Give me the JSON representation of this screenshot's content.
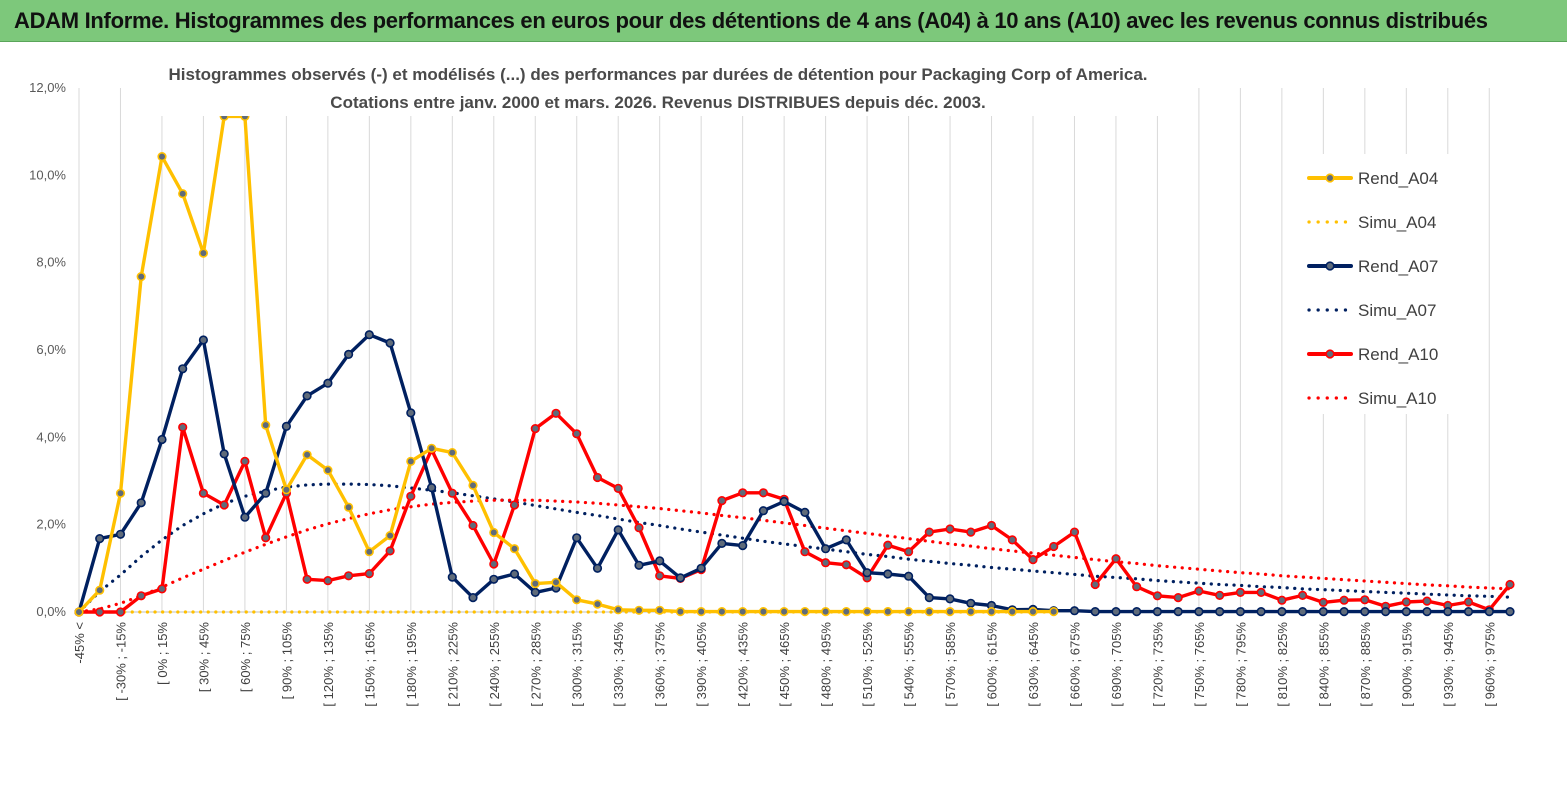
{
  "header": {
    "title": "ADAM Informe. Histogrammes des performances en euros pour des détentions de 4 ans (A04) à 10 ans (A10) avec les revenus connus distribués"
  },
  "chart_data": {
    "type": "line",
    "title": "Histogrammes observés (-)  et modélisés (...) des performances par durées de détention pour Packaging Corp of America.",
    "subtitle": "Cotations entre janv. 2000 et mars. 2026.  Revenus DISTRIBUES depuis déc. 2003.",
    "xlabel": "",
    "ylabel": "",
    "ylim": [
      0,
      0.12
    ],
    "ytick_labels": [
      "0,0%",
      "2,0%",
      "4,0%",
      "6,0%",
      "8,0%",
      "10,0%",
      "12,0%"
    ],
    "grid": "vertical",
    "legend_position": "right",
    "categories": [
      "-45% <",
      "",
      "[ -30% ; -15%",
      "",
      "[ 0% ; 15%",
      "",
      "[ 30% ; 45%",
      "",
      "[ 60% ; 75%",
      "",
      "[ 90% ; 105%",
      "",
      "[ 120% ; 135%",
      "",
      "[ 150% ; 165%",
      "",
      "[ 180% ; 195%",
      "",
      "[ 210% ; 225%",
      "",
      "[ 240% ; 255%",
      "",
      "[ 270% ; 285%",
      "",
      "[ 300% ; 315%",
      "",
      "[ 330% ; 345%",
      "",
      "[ 360% ; 375%",
      "",
      "[ 390% ; 405%",
      "",
      "[ 420% ; 435%",
      "",
      "[ 450% ; 465%",
      "",
      "[ 480% ; 495%",
      "",
      "[ 510% ; 525%",
      "",
      "[ 540% ; 555%",
      "",
      "[ 570% ; 585%",
      "",
      "[ 600% ; 615%",
      "",
      "[ 630% ; 645%",
      "",
      "[ 660% ; 675%",
      "",
      "[ 690% ; 705%",
      "",
      "[ 720% ; 735%",
      "",
      "[ 750% ; 765%",
      "",
      "[ 780% ; 795%",
      "",
      "[ 810% ; 825%",
      "",
      "[ 840% ; 855%",
      "",
      "[ 870% ; 885%",
      "",
      "[ 900% ; 915%",
      "",
      "[ 930% ; 945%",
      "",
      "[ 960% ; 975%",
      ""
    ],
    "series": [
      {
        "name": "Rend_A04",
        "color": "#ffc000",
        "style": "solid",
        "markers": true,
        "values": [
          0.0,
          0.005,
          0.0272,
          0.0768,
          0.1043,
          0.0958,
          0.0822,
          0.1135,
          0.1135,
          0.0428,
          0.028,
          0.036,
          0.0325,
          0.024,
          0.0138,
          0.0175,
          0.0345,
          0.0375,
          0.0365,
          0.029,
          0.0182,
          0.0145,
          0.0065,
          0.0068,
          0.0028,
          0.0018,
          0.0005,
          0.0004,
          0.0004,
          0.0001,
          0.0001,
          0.0001,
          0.0001,
          0.0001,
          0.0001,
          0.0001,
          0.0001,
          0.0001,
          0.0001,
          0.0001,
          0.0001,
          0.0001,
          0.0001,
          0.0001,
          0.0001,
          0.0001,
          0.0001,
          0.0001,
          null,
          null,
          null,
          null,
          null,
          null,
          null,
          null,
          null,
          null,
          null,
          null,
          null,
          null,
          null,
          null,
          null,
          null,
          null,
          null,
          null,
          null
        ]
      },
      {
        "name": "Simu_A04",
        "color": "#ffc000",
        "style": "dotted",
        "markers": false,
        "values": [
          0.0,
          0.0,
          0.0,
          0.0,
          0.0,
          0.0,
          0.0,
          0.0,
          0.0,
          0.0,
          0.0,
          0.0,
          0.0,
          0.0,
          0.0,
          0.0,
          0.0,
          0.0,
          0.0,
          0.0,
          0.0,
          0.0,
          0.0,
          0.0,
          0.0,
          0.0,
          0.0,
          0.0,
          0.0,
          0.0,
          0.0,
          0.0,
          0.0,
          0.0,
          0.0,
          0.0,
          0.0,
          0.0,
          0.0,
          0.0,
          0.0,
          0.0,
          0.0,
          0.0,
          0.0,
          0.0,
          0.0,
          0.0,
          null,
          null,
          null,
          null,
          null,
          null,
          null,
          null,
          null,
          null,
          null,
          null,
          null,
          null,
          null,
          null,
          null,
          null,
          null,
          null,
          null,
          null
        ]
      },
      {
        "name": "Rend_A07",
        "color": "#002060",
        "style": "solid",
        "markers": true,
        "values": [
          0.0,
          0.0168,
          0.0178,
          0.025,
          0.0395,
          0.0557,
          0.0623,
          0.0362,
          0.0217,
          0.0272,
          0.0425,
          0.0495,
          0.0524,
          0.059,
          0.0635,
          0.0616,
          0.0456,
          0.0285,
          0.008,
          0.0033,
          0.0075,
          0.0087,
          0.0045,
          0.0055,
          0.017,
          0.01,
          0.0188,
          0.0107,
          0.0117,
          0.0078,
          0.01,
          0.0157,
          0.0152,
          0.0232,
          0.0253,
          0.0228,
          0.0145,
          0.0165,
          0.009,
          0.0087,
          0.0082,
          0.0033,
          0.003,
          0.002,
          0.0015,
          0.0005,
          0.0006,
          0.0003,
          0.0003,
          0.0001,
          0.0001,
          0.0001,
          0.0001,
          0.0001,
          0.0001,
          0.0001,
          0.0001,
          0.0001,
          0.0001,
          0.0001,
          0.0001,
          0.0001,
          0.0001,
          0.0001,
          0.0001,
          0.0001,
          0.0001,
          0.0001,
          0.0001,
          0.0001
        ]
      },
      {
        "name": "Simu_A07",
        "color": "#002060",
        "style": "dotted",
        "markers": false,
        "values": [
          0.0,
          0.0047,
          0.0085,
          0.0127,
          0.0165,
          0.0198,
          0.0225,
          0.0248,
          0.0265,
          0.0277,
          0.0286,
          0.0291,
          0.0293,
          0.0293,
          0.0292,
          0.0289,
          0.0284,
          0.0279,
          0.0273,
          0.0266,
          0.0259,
          0.0252,
          0.0244,
          0.0236,
          0.0228,
          0.0221,
          0.0213,
          0.0205,
          0.0198,
          0.019,
          0.0183,
          0.0176,
          0.0169,
          0.0162,
          0.0156,
          0.015,
          0.0144,
          0.0138,
          0.0132,
          0.0127,
          0.0121,
          0.0116,
          0.0111,
          0.0107,
          0.0102,
          0.0098,
          0.0094,
          0.009,
          0.0086,
          0.0082,
          0.0079,
          0.0076,
          0.0072,
          0.0069,
          0.0066,
          0.0063,
          0.0061,
          0.0058,
          0.0056,
          0.0053,
          0.0051,
          0.0049,
          0.0047,
          0.0045,
          0.0043,
          0.0041,
          0.0039,
          0.0037,
          0.0036,
          0.0034
        ]
      },
      {
        "name": "Rend_A10",
        "color": "#ff0000",
        "style": "solid",
        "markers": true,
        "values": [
          0.0,
          0.0,
          0.0,
          0.0037,
          0.0053,
          0.0423,
          0.0272,
          0.0245,
          0.0345,
          0.017,
          0.0272,
          0.0075,
          0.0072,
          0.0083,
          0.0088,
          0.014,
          0.0265,
          0.0372,
          0.0272,
          0.0198,
          0.011,
          0.0245,
          0.042,
          0.0455,
          0.0408,
          0.0308,
          0.0283,
          0.0193,
          0.0083,
          0.0077,
          0.0097,
          0.0255,
          0.0273,
          0.0273,
          0.0258,
          0.0138,
          0.0113,
          0.0108,
          0.0078,
          0.0153,
          0.0138,
          0.0183,
          0.019,
          0.0183,
          0.0198,
          0.0165,
          0.012,
          0.015,
          0.0183,
          0.0063,
          0.0122,
          0.0058,
          0.0037,
          0.0033,
          0.0048,
          0.0038,
          0.0045,
          0.0045,
          0.0027,
          0.0038,
          0.0022,
          0.0027,
          0.0028,
          0.0013,
          0.0023,
          0.0025,
          0.0015,
          0.0023,
          0.0005,
          0.0063
        ]
      },
      {
        "name": "Simu_A10",
        "color": "#ff0000",
        "style": "dotted",
        "markers": false,
        "values": [
          0.0,
          0.0007,
          0.002,
          0.0037,
          0.0057,
          0.0078,
          0.0098,
          0.0118,
          0.0137,
          0.0155,
          0.0172,
          0.0188,
          0.0202,
          0.0214,
          0.0225,
          0.0234,
          0.0241,
          0.0247,
          0.0251,
          0.0254,
          0.0256,
          0.0256,
          0.0256,
          0.0254,
          0.0252,
          0.0249,
          0.0245,
          0.0241,
          0.0237,
          0.0232,
          0.0227,
          0.0221,
          0.0216,
          0.021,
          0.0204,
          0.0198,
          0.0192,
          0.0186,
          0.018,
          0.0174,
          0.0168,
          0.0162,
          0.0156,
          0.0151,
          0.0145,
          0.014,
          0.0135,
          0.013,
          0.0125,
          0.012,
          0.0115,
          0.0111,
          0.0106,
          0.0102,
          0.0098,
          0.0094,
          0.009,
          0.0087,
          0.0083,
          0.008,
          0.0077,
          0.0074,
          0.0071,
          0.0068,
          0.0065,
          0.0062,
          0.006,
          0.0057,
          0.0055,
          0.0053
        ]
      }
    ]
  }
}
